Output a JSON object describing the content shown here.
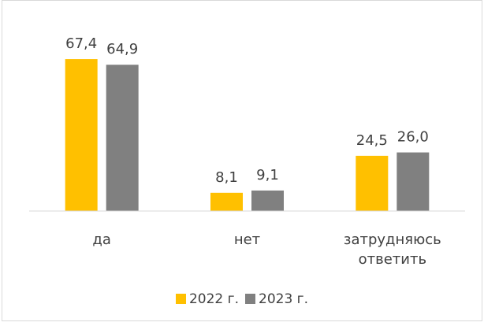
{
  "chart_data": {
    "type": "bar",
    "categories": [
      "да",
      "нет",
      "затрудняюсь ответить"
    ],
    "series": [
      {
        "name": "2022 г.",
        "color": "#FFC000",
        "values": [
          67.4,
          8.1,
          24.5
        ],
        "value_labels": [
          "67,4",
          "8,1",
          "24,5"
        ]
      },
      {
        "name": "2023 г.",
        "color": "#808080",
        "values": [
          64.9,
          9.1,
          26.0
        ],
        "value_labels": [
          "64,9",
          "9,1",
          "26,0"
        ]
      }
    ],
    "ylim": [
      0,
      80
    ],
    "legend": "bottom",
    "grid": false
  }
}
